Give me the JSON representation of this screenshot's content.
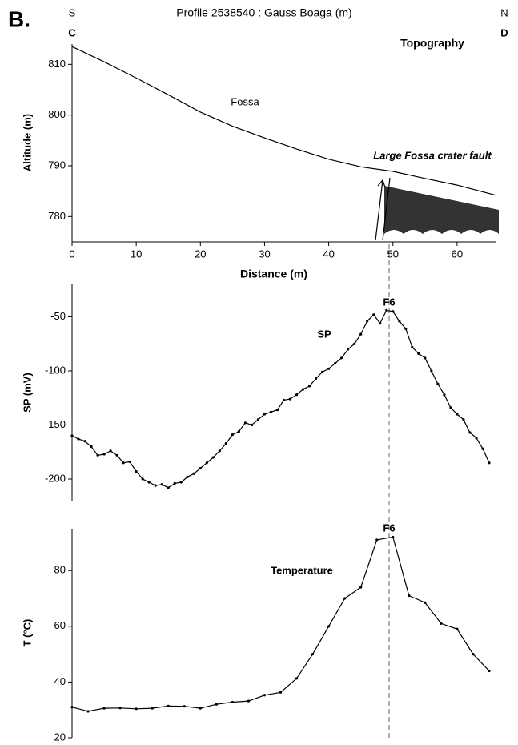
{
  "chart_data": [
    {
      "type": "line",
      "panel_label": "B.",
      "title": "Profile 2538540 : Gauss Boaga (m)",
      "left_label": "S",
      "right_label": "N",
      "left_end": "C",
      "right_end": "D",
      "x_label": "Distance (m)",
      "y_label": "Altitude (m)",
      "annotations": [
        "Topography",
        "Fossa",
        "Large Fossa crater fault"
      ],
      "xlim": [
        0,
        66
      ],
      "xticks": [
        0,
        10,
        20,
        30,
        40,
        50,
        60
      ],
      "ylim": [
        775,
        814
      ],
      "yticks": [
        780,
        790,
        800,
        810
      ],
      "markers": false,
      "series": [
        {
          "name": "Topography",
          "color": "#000000",
          "x": [
            0,
            5,
            10,
            15,
            20,
            25,
            30,
            35,
            40,
            45,
            50,
            55,
            60,
            66
          ],
          "values": [
            813.5,
            810.5,
            807.3,
            804,
            800.6,
            797.8,
            795.5,
            793.3,
            791.3,
            789.8,
            788.9,
            787.5,
            786.2,
            784.2
          ]
        }
      ]
    },
    {
      "type": "line",
      "y_label": "SP (mV)",
      "annotations": [
        "SP",
        "F6"
      ],
      "xlim": [
        0,
        66
      ],
      "ylim": [
        -220,
        -20
      ],
      "yticks": [
        -200,
        -150,
        -100,
        -50
      ],
      "markers": true,
      "series": [
        {
          "name": "SP",
          "color": "#000000",
          "x": [
            0,
            1,
            2,
            3,
            4,
            5,
            6,
            7,
            8,
            9,
            10,
            11,
            12,
            13,
            14,
            15,
            16,
            17,
            18,
            19,
            20,
            21,
            22,
            23,
            24,
            25,
            26,
            27,
            28,
            29,
            30,
            31,
            32,
            33,
            34,
            35,
            36,
            37,
            38,
            39,
            40,
            41,
            42,
            43,
            44,
            45,
            46,
            47,
            48,
            49,
            50,
            51,
            52,
            53,
            54,
            55,
            56,
            57,
            58,
            59,
            60,
            61,
            62,
            63,
            64,
            65
          ],
          "values": [
            -160,
            -163,
            -165,
            -170,
            -178,
            -177,
            -174,
            -178,
            -185,
            -184,
            -193,
            -200,
            -203,
            -206,
            -205,
            -208,
            -204,
            -203,
            -198,
            -195,
            -190,
            -185,
            -180,
            -174,
            -167,
            -159,
            -156,
            -148,
            -150,
            -145,
            -140,
            -138,
            -136,
            -127,
            -126,
            -122,
            -117,
            -114,
            -107,
            -101,
            -98,
            -93,
            -88,
            -80,
            -75,
            -66,
            -54,
            -48,
            -56,
            -44,
            -45,
            -54,
            -61,
            -78,
            -84,
            -88,
            -100,
            -112,
            -122,
            -134,
            -140,
            -145,
            -157,
            -162,
            -172,
            -185
          ]
        }
      ]
    },
    {
      "type": "line",
      "y_label": "T (°C)",
      "annotations": [
        "Temperature",
        "F6"
      ],
      "xlim": [
        0,
        66
      ],
      "ylim": [
        20,
        95
      ],
      "yticks": [
        20,
        40,
        60,
        80
      ],
      "markers": true,
      "series": [
        {
          "name": "Temperature",
          "color": "#000000",
          "x": [
            0,
            2.5,
            5,
            7.5,
            10,
            12.5,
            15,
            17.5,
            20,
            22.5,
            25,
            27.5,
            30,
            32.5,
            35,
            37.5,
            40,
            42.5,
            45,
            47.5,
            50,
            52.5,
            55,
            57.5,
            60,
            62.5,
            65
          ],
          "values": [
            31,
            29.5,
            30.6,
            30.7,
            30.4,
            30.6,
            31.4,
            31.3,
            30.6,
            32,
            32.8,
            33.2,
            35.3,
            36.3,
            41.3,
            50,
            60,
            70,
            74,
            91,
            92,
            71,
            68.5,
            61,
            59,
            50,
            44
          ]
        }
      ]
    }
  ]
}
